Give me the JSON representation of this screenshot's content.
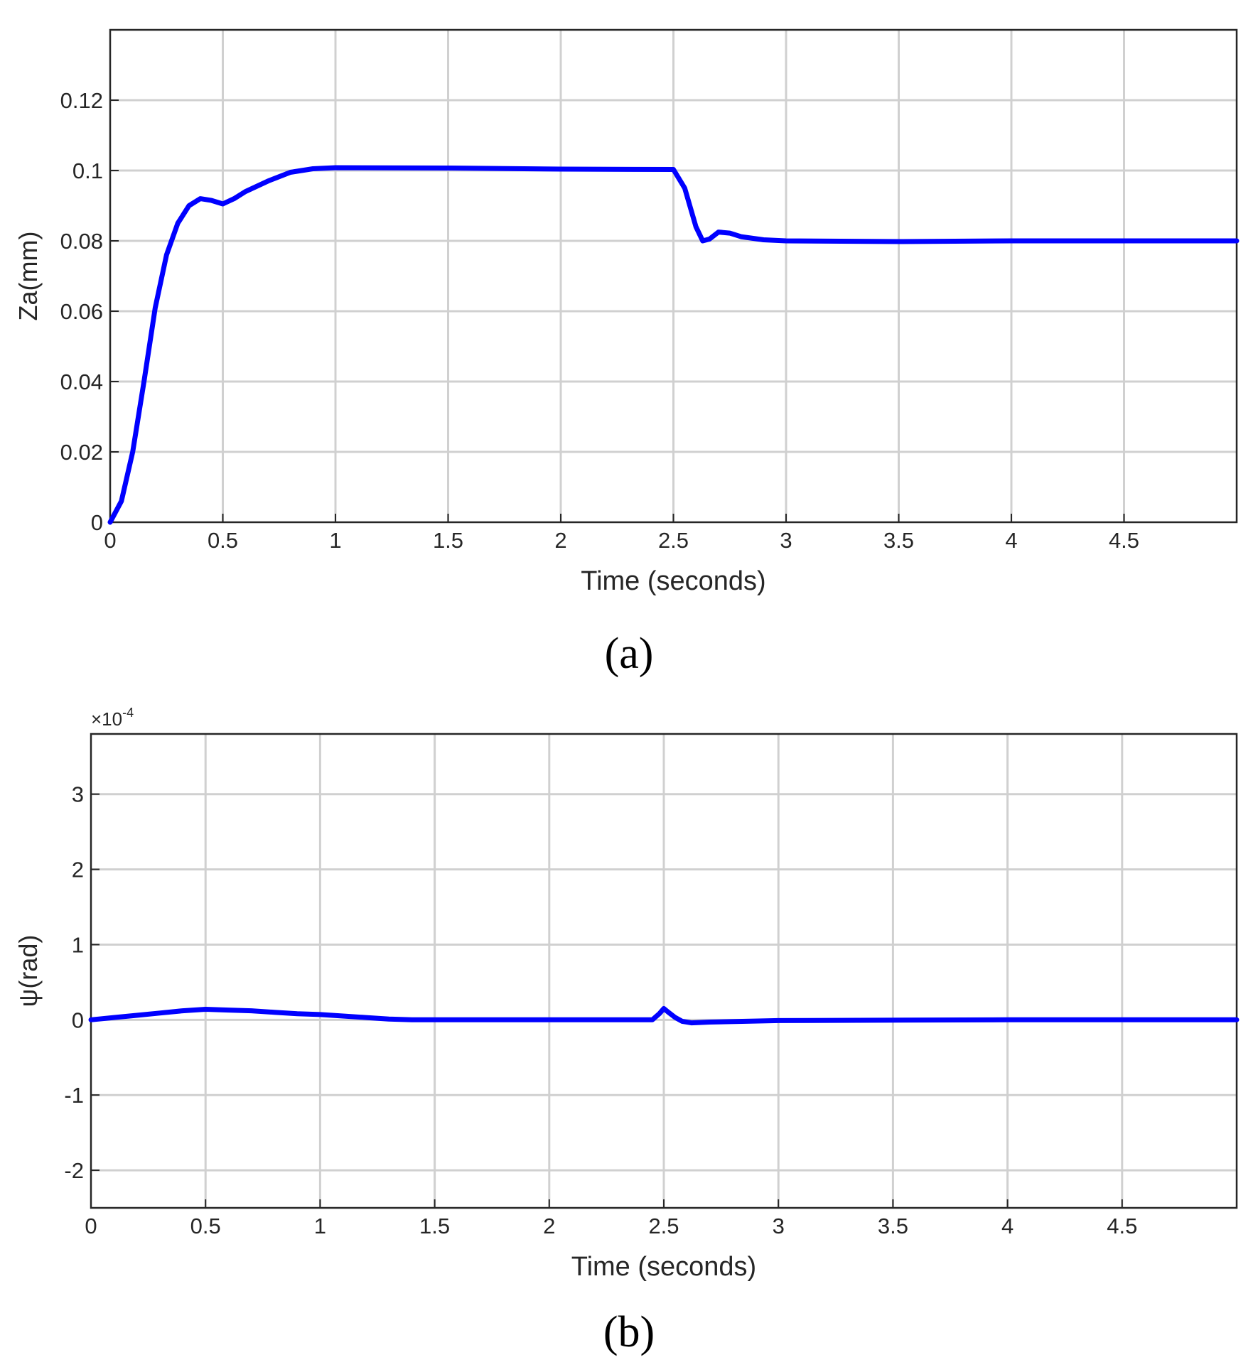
{
  "chart_data": [
    {
      "type": "line",
      "panel_label": "(a)",
      "xlabel": "Time (seconds)",
      "ylabel": "Za(mm)",
      "xlim": [
        0,
        5
      ],
      "ylim": [
        0,
        0.14
      ],
      "xticks": [
        0,
        0.5,
        1,
        1.5,
        2,
        2.5,
        3,
        3.5,
        4,
        4.5
      ],
      "xtick_labels": [
        "0",
        "0.5",
        "1",
        "1.5",
        "2",
        "2.5",
        "3",
        "3.5",
        "4",
        "4.5"
      ],
      "yticks": [
        0,
        0.02,
        0.04,
        0.06,
        0.08,
        0.1,
        0.12
      ],
      "ytick_labels": [
        "0",
        "0.02",
        "0.04",
        "0.06",
        "0.08",
        "0.1",
        "0.12"
      ],
      "grid": true,
      "line_color": "#0000ff",
      "series": [
        {
          "x": [
            0,
            0.05,
            0.1,
            0.15,
            0.2,
            0.25,
            0.3,
            0.35,
            0.4,
            0.45,
            0.5,
            0.55,
            0.6,
            0.7,
            0.8,
            0.9,
            1.0,
            1.5,
            2.0,
            2.5,
            2.55,
            2.6,
            2.63,
            2.66,
            2.7,
            2.75,
            2.8,
            2.9,
            3.0,
            3.5,
            4.0,
            5.0
          ],
          "y": [
            0,
            0.006,
            0.02,
            0.04,
            0.061,
            0.076,
            0.085,
            0.09,
            0.092,
            0.0915,
            0.0905,
            0.092,
            0.094,
            0.097,
            0.0995,
            0.1005,
            0.1008,
            0.1007,
            0.1004,
            0.1003,
            0.095,
            0.084,
            0.08,
            0.0805,
            0.0825,
            0.0822,
            0.0812,
            0.0803,
            0.08,
            0.0798,
            0.08,
            0.08
          ]
        }
      ]
    },
    {
      "type": "line",
      "panel_label": "(b)",
      "xlabel": "Time (seconds)",
      "ylabel": "ψ(rad)",
      "y_multiplier_base": "×10",
      "y_multiplier_exp": "-4",
      "xlim": [
        0,
        5
      ],
      "ylim": [
        -2.5,
        3.8
      ],
      "xticks": [
        0,
        0.5,
        1,
        1.5,
        2,
        2.5,
        3,
        3.5,
        4,
        4.5
      ],
      "xtick_labels": [
        "0",
        "0.5",
        "1",
        "1.5",
        "2",
        "2.5",
        "3",
        "3.5",
        "4",
        "4.5"
      ],
      "yticks": [
        -2,
        -1,
        0,
        1,
        2,
        3
      ],
      "ytick_labels": [
        "-2",
        "-1",
        "0",
        "1",
        "2",
        "3"
      ],
      "grid": true,
      "line_color": "#0000ff",
      "series": [
        {
          "x": [
            0,
            0.1,
            0.2,
            0.3,
            0.4,
            0.5,
            0.6,
            0.7,
            0.8,
            0.9,
            1.0,
            1.1,
            1.2,
            1.3,
            1.4,
            1.5,
            2.0,
            2.45,
            2.48,
            2.5,
            2.52,
            2.55,
            2.58,
            2.62,
            2.7,
            3.0,
            4.0,
            5.0
          ],
          "y": [
            0,
            0.03,
            0.06,
            0.09,
            0.12,
            0.14,
            0.13,
            0.12,
            0.1,
            0.08,
            0.07,
            0.05,
            0.03,
            0.01,
            0.0,
            0.0,
            0.0,
            0.0,
            0.08,
            0.15,
            0.1,
            0.03,
            -0.02,
            -0.04,
            -0.03,
            -0.01,
            0.0,
            0.0
          ]
        }
      ]
    }
  ]
}
